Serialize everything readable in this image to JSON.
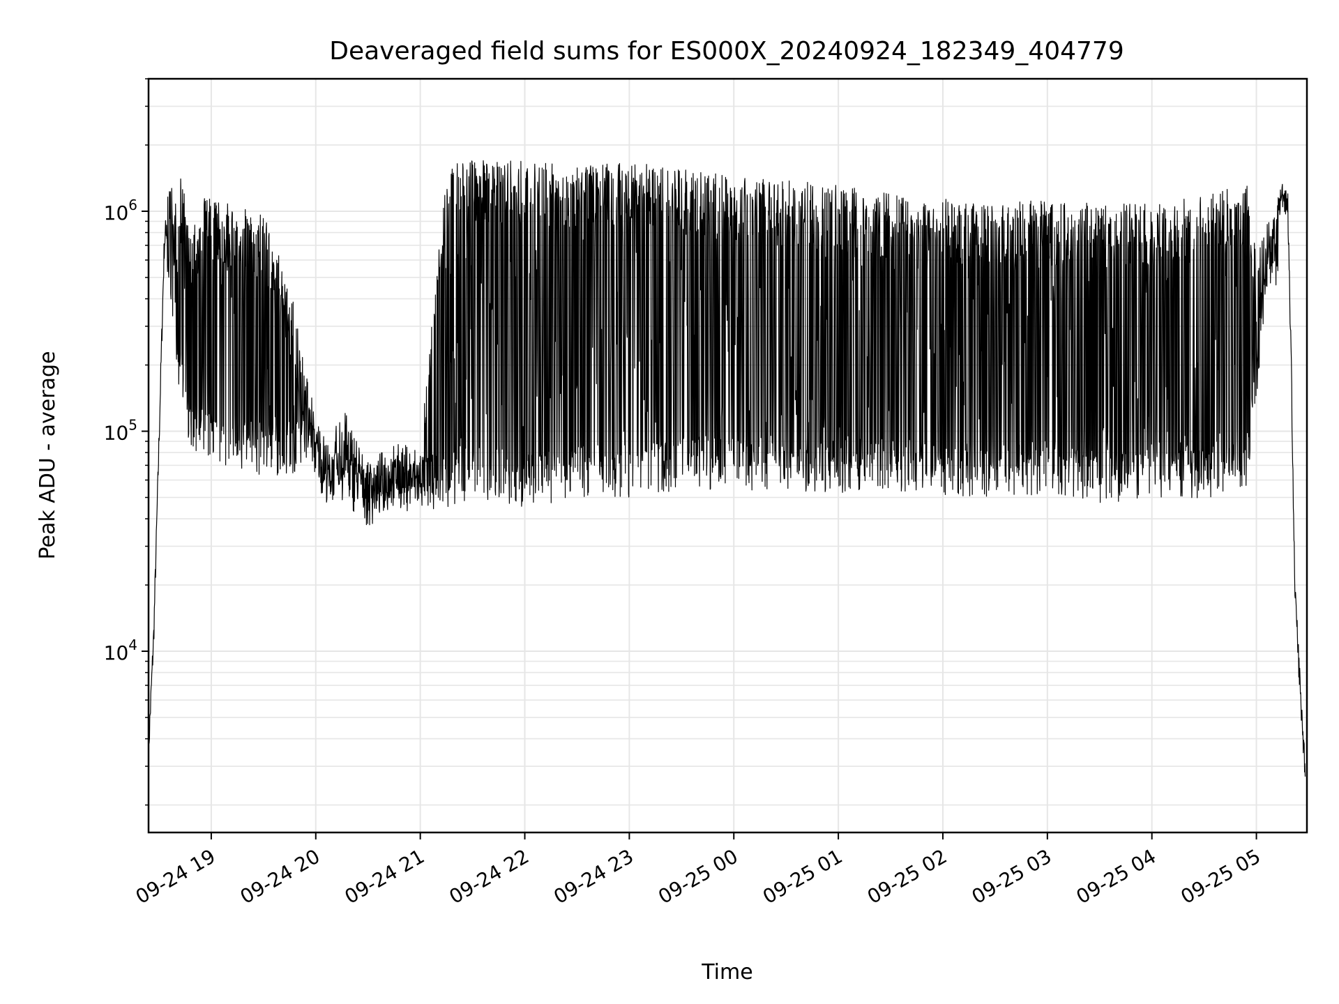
{
  "chart_data": {
    "type": "line",
    "title": "Deaveraged field sums for ES000X_20240924_182349_404779",
    "xlabel": "Time",
    "ylabel": "Peak ADU - average",
    "yscale": "log",
    "ylim": [
      1500,
      4000000
    ],
    "xlim": [
      "2024-09-24 18:24",
      "2024-09-25 05:29"
    ],
    "grid": true,
    "line_color": "#000000",
    "grid_color": "#e6e6e6",
    "x_tick_labels": [
      "09-24 19",
      "09-24 20",
      "09-24 21",
      "09-24 22",
      "09-24 23",
      "09-25 00",
      "09-25 01",
      "09-25 02",
      "09-25 03",
      "09-25 04",
      "09-25 05"
    ],
    "x_tick_values": [
      "2024-09-24 19:00",
      "2024-09-24 20:00",
      "2024-09-24 21:00",
      "2024-09-24 22:00",
      "2024-09-24 23:00",
      "2024-09-25 00:00",
      "2024-09-25 01:00",
      "2024-09-25 02:00",
      "2024-09-25 03:00",
      "2024-09-25 04:00",
      "2024-09-25 05:00"
    ],
    "y_ticks": [
      {
        "value": 10000,
        "base": "10",
        "exp": "4"
      },
      {
        "value": 100000,
        "base": "10",
        "exp": "5"
      },
      {
        "value": 1000000,
        "base": "10",
        "exp": "6"
      }
    ],
    "series": [
      {
        "x": [
          "2024-09-24 18:24",
          "2024-09-24 18:27",
          "2024-09-24 18:30",
          "2024-09-24 18:33",
          "2024-09-24 18:36",
          "2024-09-24 18:39",
          "2024-09-24 18:42",
          "2024-09-24 18:48",
          "2024-09-24 18:55",
          "2024-09-24 19:10",
          "2024-09-24 19:30",
          "2024-09-24 19:45",
          "2024-09-24 19:55",
          "2024-09-24 20:02",
          "2024-09-24 20:08",
          "2024-09-24 20:15",
          "2024-09-24 20:30",
          "2024-09-24 20:45",
          "2024-09-24 21:00",
          "2024-09-24 21:15",
          "2024-09-24 21:30",
          "2024-09-24 22:00",
          "2024-09-24 22:30",
          "2024-09-24 23:00",
          "2024-09-24 23:30",
          "2024-09-25 00:00",
          "2024-09-25 00:30",
          "2024-09-25 01:00",
          "2024-09-25 01:30",
          "2024-09-25 02:00",
          "2024-09-25 02:30",
          "2024-09-25 03:00",
          "2024-09-25 03:30",
          "2024-09-25 04:00",
          "2024-09-25 04:30",
          "2024-09-25 04:55",
          "2024-09-25 05:00",
          "2024-09-25 05:05",
          "2024-09-25 05:10",
          "2024-09-25 05:15",
          "2024-09-25 05:18",
          "2024-09-25 05:20",
          "2024-09-25 05:22",
          "2024-09-25 05:24",
          "2024-09-25 05:26",
          "2024-09-25 05:28"
        ],
        "values": [
          3500,
          12000,
          90000,
          700000,
          1200000,
          900000,
          1300000,
          700000,
          1000000,
          900000,
          800000,
          400000,
          150000,
          90000,
          70000,
          110000,
          60000,
          75000,
          70000,
          1300000,
          1500000,
          1400000,
          1350000,
          1400000,
          1300000,
          1200000,
          1150000,
          1100000,
          1000000,
          950000,
          900000,
          950000,
          900000,
          900000,
          1000000,
          1100000,
          500000,
          700000,
          900000,
          1200000,
          1100000,
          200000,
          20000,
          10000,
          5000,
          3000
        ]
      }
    ],
    "series_style": {
      "noise_min": [
        0,
        0,
        0,
        0,
        400000,
        300000,
        150000,
        80000,
        80000,
        70000,
        70000,
        70000,
        80000,
        60000,
        50000,
        50000,
        45000,
        50000,
        48000,
        50000,
        55000,
        50000,
        55000,
        55000,
        60000,
        60000,
        60000,
        58000,
        60000,
        55000,
        55000,
        55000,
        52000,
        55000,
        55000,
        60000,
        150000,
        400000,
        500000,
        0,
        0,
        0,
        0,
        0,
        0,
        0
      ]
    }
  }
}
